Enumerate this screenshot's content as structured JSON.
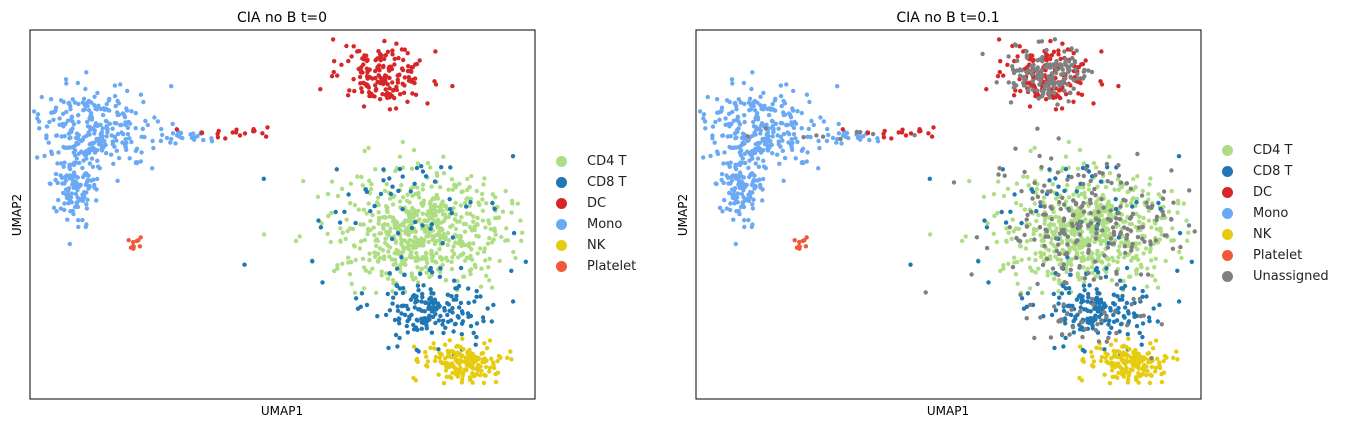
{
  "chart_data": [
    {
      "type": "scatter",
      "title": "CIA no B t=0",
      "xlabel": "UMAP1",
      "ylabel": "UMAP2",
      "legend_position": "right",
      "series": [
        {
          "name": "CD4 T",
          "color": "#aede84"
        },
        {
          "name": "CD8 T",
          "color": "#1f77b4"
        },
        {
          "name": "DC",
          "color": "#d62728"
        },
        {
          "name": "Mono",
          "color": "#6ba9f4"
        },
        {
          "name": "NK",
          "color": "#e5cc10"
        },
        {
          "name": "Platelet",
          "color": "#f2583a"
        }
      ]
    },
    {
      "type": "scatter",
      "title": "CIA no B t=0.1",
      "xlabel": "UMAP1",
      "ylabel": "UMAP2",
      "legend_position": "right",
      "series": [
        {
          "name": "CD4 T",
          "color": "#aede84"
        },
        {
          "name": "CD8 T",
          "color": "#1f77b4"
        },
        {
          "name": "DC",
          "color": "#d62728"
        },
        {
          "name": "Mono",
          "color": "#6ba9f4"
        },
        {
          "name": "NK",
          "color": "#e5cc10"
        },
        {
          "name": "Platelet",
          "color": "#f2583a"
        },
        {
          "name": "Unassigned",
          "color": "#808080"
        }
      ]
    }
  ]
}
